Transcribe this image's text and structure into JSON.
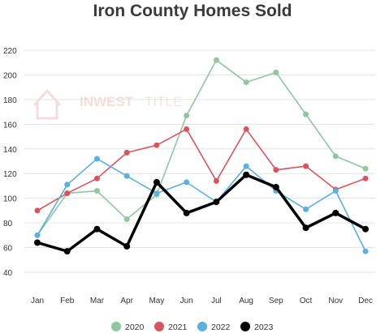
{
  "chart_data": {
    "type": "line",
    "title": "Iron County Homes Sold",
    "categories": [
      "Jan",
      "Feb",
      "Mar",
      "Apr",
      "May",
      "Jun",
      "Jul",
      "Aug",
      "Sep",
      "Oct",
      "Nov",
      "Dec"
    ],
    "ylim": [
      40,
      220
    ],
    "yticks": [
      40,
      60,
      80,
      100,
      120,
      140,
      160,
      180,
      200,
      220
    ],
    "grid": true,
    "legend_position": "bottom",
    "series": [
      {
        "name": "2020",
        "color": "#8fc79f",
        "values": [
          70,
          104,
          106,
          83,
          103,
          167,
          212,
          194,
          202,
          168,
          134,
          124
        ]
      },
      {
        "name": "2021",
        "color": "#d9555c",
        "values": [
          90,
          104,
          116,
          137,
          143,
          156,
          114,
          156,
          123,
          126,
          107,
          116
        ]
      },
      {
        "name": "2022",
        "color": "#5ab0de",
        "values": [
          70,
          111,
          132,
          118,
          104,
          113,
          97,
          126,
          106,
          91,
          106,
          57
        ]
      },
      {
        "name": "2023",
        "color": "#000000",
        "values": [
          64,
          57,
          75,
          61,
          113,
          88,
          97,
          119,
          109,
          76,
          88,
          75
        ]
      }
    ]
  },
  "watermark": {
    "brand": "INWEST",
    "suffix": "TITLE"
  }
}
